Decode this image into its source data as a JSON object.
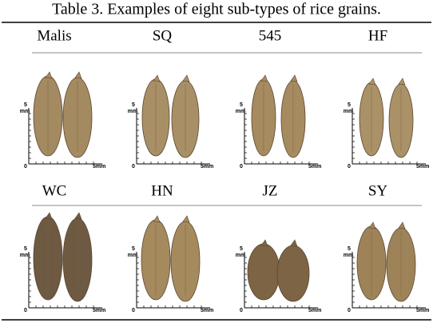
{
  "caption": "Table 3. Examples of eight sub-types of rice grains.",
  "rows": [
    {
      "labels": [
        "Malis",
        "SQ",
        "545",
        "HF"
      ]
    },
    {
      "labels": [
        "WC",
        "HN",
        "JZ",
        "SY"
      ]
    }
  ],
  "scale_labels": {
    "top": "5",
    "unit": "mm",
    "zero": "0",
    "end": "5mm"
  }
}
